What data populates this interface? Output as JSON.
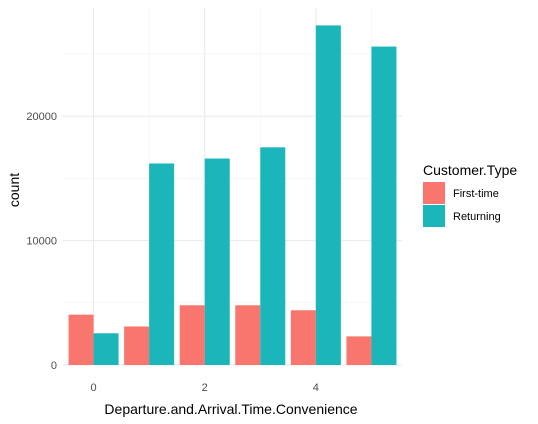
{
  "chart_data": {
    "type": "bar",
    "x_title": "Departure.and.Arrival.Time.Convenience",
    "y_title": "count",
    "x": [
      0,
      1,
      2,
      3,
      4,
      5
    ],
    "x_ticks": [
      0,
      2,
      4
    ],
    "y_ticks": [
      0,
      10000,
      20000
    ],
    "y_range": [
      0,
      28700
    ],
    "legend_title": "Customer.Type",
    "legend_position": "right",
    "grid": true,
    "series": [
      {
        "name": "First-time",
        "color": "#F8766D",
        "values": [
          4050,
          3100,
          4800,
          4800,
          4400,
          2300
        ]
      },
      {
        "name": "Returning",
        "color": "#1BB6BA",
        "values": [
          2550,
          16200,
          16600,
          17500,
          27300,
          25600
        ]
      }
    ]
  }
}
